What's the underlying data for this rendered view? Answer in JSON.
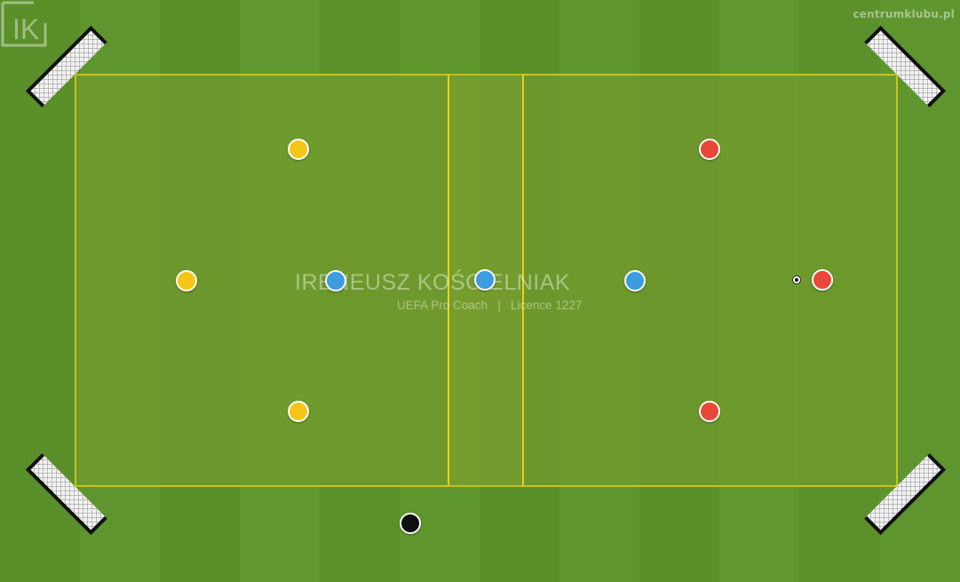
{
  "site_label": "centrumklubu.pl",
  "watermark": {
    "name": "IRENEUSZ KOŚCIELNIAK",
    "subtitle": "UEFA Pro Coach   |   Licence 1227",
    "logo_letters": "IK"
  },
  "colors": {
    "team_yellow": "#f5c518",
    "team_red": "#e8473a",
    "neutral_blue": "#3d9be0",
    "coach_black": "#0f0f0f",
    "field_line": "#e8d21a"
  },
  "players": [
    {
      "id": "yellow-1",
      "team": "yellow"
    },
    {
      "id": "yellow-2",
      "team": "yellow"
    },
    {
      "id": "yellow-3",
      "team": "yellow"
    },
    {
      "id": "blue-1",
      "team": "blue"
    },
    {
      "id": "blue-2",
      "team": "blue"
    },
    {
      "id": "blue-3",
      "team": "blue"
    },
    {
      "id": "red-1",
      "team": "red"
    },
    {
      "id": "red-2",
      "team": "red"
    },
    {
      "id": "red-3",
      "team": "red"
    },
    {
      "id": "black-1",
      "team": "black"
    }
  ],
  "goals": [
    {
      "id": "top-left"
    },
    {
      "id": "top-right"
    },
    {
      "id": "bottom-left"
    },
    {
      "id": "bottom-right"
    }
  ],
  "icons": {
    "ball": "soccer-ball-icon",
    "logo": "ik-logo-icon"
  }
}
